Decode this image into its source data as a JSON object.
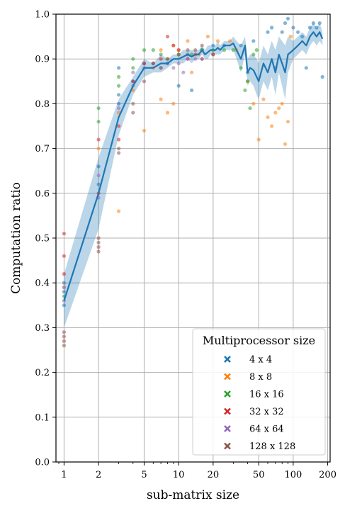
{
  "chart_data": {
    "type": "scatter",
    "title": "",
    "xlabel": "sub-matrix size",
    "ylabel": "Computation ratio",
    "x_scale": "log",
    "xlim": [
      0.85,
      210
    ],
    "ylim": [
      0.0,
      1.0
    ],
    "x_ticks": [
      1,
      2,
      5,
      10,
      20,
      50,
      100,
      200
    ],
    "x_tick_labels": [
      "1",
      "2",
      "5",
      "10",
      "20",
      "50",
      "100",
      "200"
    ],
    "y_ticks": [
      0.0,
      0.1,
      0.2,
      0.3,
      0.4,
      0.5,
      0.6,
      0.7,
      0.8,
      0.9,
      1.0
    ],
    "y_tick_labels": [
      "0.0",
      "0.1",
      "0.2",
      "0.3",
      "0.4",
      "0.5",
      "0.6",
      "0.7",
      "0.8",
      "0.9",
      "1.0"
    ],
    "grid": true,
    "legend": {
      "title": "Multiprocessor size",
      "placement": "lower-right",
      "entries": [
        "4 x 4",
        "8 x 8",
        "16 x 16",
        "32 x 32",
        "64 x 64",
        "128 x 128"
      ]
    },
    "colors": {
      "4 x 4": "#1f77b4",
      "8 x 8": "#ff7f0e",
      "16 x 16": "#2ca02c",
      "32 x 32": "#d62728",
      "64 x 64": "#9467bd",
      "128 x 128": "#8c564b",
      "mean_line": "#1f77b4",
      "band": "#1f77b4"
    },
    "mean_line": {
      "x": [
        1,
        2,
        3,
        4,
        5,
        6,
        7,
        8,
        9,
        10,
        11,
        12,
        13,
        14,
        15,
        16,
        17,
        18,
        19,
        20,
        21,
        22,
        23,
        25,
        28,
        30,
        32,
        35,
        38,
        40,
        42,
        45,
        48,
        50,
        55,
        60,
        65,
        70,
        75,
        80,
        85,
        90,
        100,
        110,
        120,
        130,
        140,
        150,
        160,
        170,
        180
      ],
      "y": [
        0.36,
        0.6,
        0.77,
        0.84,
        0.88,
        0.88,
        0.89,
        0.89,
        0.9,
        0.9,
        0.905,
        0.91,
        0.905,
        0.91,
        0.91,
        0.92,
        0.91,
        0.915,
        0.92,
        0.92,
        0.92,
        0.925,
        0.92,
        0.93,
        0.93,
        0.935,
        0.92,
        0.9,
        0.93,
        0.87,
        0.88,
        0.875,
        0.86,
        0.85,
        0.89,
        0.87,
        0.9,
        0.87,
        0.91,
        0.89,
        0.87,
        0.91,
        0.92,
        0.93,
        0.94,
        0.93,
        0.95,
        0.96,
        0.95,
        0.96,
        0.945
      ]
    },
    "band": {
      "lower": [
        0.3,
        0.52,
        0.73,
        0.82,
        0.86,
        0.87,
        0.87,
        0.88,
        0.89,
        0.89,
        0.89,
        0.9,
        0.89,
        0.9,
        0.9,
        0.91,
        0.9,
        0.9,
        0.91,
        0.91,
        0.91,
        0.91,
        0.91,
        0.92,
        0.92,
        0.92,
        0.9,
        0.87,
        0.91,
        0.84,
        0.85,
        0.84,
        0.82,
        0.81,
        0.85,
        0.83,
        0.86,
        0.82,
        0.87,
        0.84,
        0.81,
        0.87,
        0.9,
        0.91,
        0.92,
        0.91,
        0.93,
        0.94,
        0.93,
        0.94,
        0.93
      ],
      "upper": [
        0.42,
        0.68,
        0.81,
        0.86,
        0.9,
        0.89,
        0.91,
        0.9,
        0.91,
        0.91,
        0.92,
        0.92,
        0.92,
        0.92,
        0.92,
        0.93,
        0.92,
        0.93,
        0.93,
        0.93,
        0.93,
        0.94,
        0.93,
        0.94,
        0.94,
        0.95,
        0.94,
        0.93,
        0.95,
        0.9,
        0.91,
        0.91,
        0.9,
        0.89,
        0.93,
        0.91,
        0.94,
        0.92,
        0.95,
        0.94,
        0.93,
        0.95,
        0.94,
        0.95,
        0.96,
        0.95,
        0.97,
        0.98,
        0.97,
        0.98,
        0.96
      ]
    },
    "series": [
      {
        "name": "4 x 4",
        "points": [
          [
            1,
            0.35
          ],
          [
            1,
            0.38
          ],
          [
            1,
            0.4
          ],
          [
            2,
            0.62
          ],
          [
            2,
            0.66
          ],
          [
            3,
            0.8
          ],
          [
            3,
            0.82
          ],
          [
            3,
            0.88
          ],
          [
            4,
            0.85
          ],
          [
            5,
            0.89
          ],
          [
            8,
            0.89
          ],
          [
            10,
            0.84
          ],
          [
            12,
            0.91
          ],
          [
            13,
            0.83
          ],
          [
            16,
            0.92
          ],
          [
            20,
            0.93
          ],
          [
            25,
            0.93
          ],
          [
            35,
            0.93
          ],
          [
            40,
            0.87
          ],
          [
            45,
            0.94
          ],
          [
            60,
            0.96
          ],
          [
            65,
            0.97
          ],
          [
            70,
            0.88
          ],
          [
            80,
            0.96
          ],
          [
            85,
            0.98
          ],
          [
            90,
            0.99
          ],
          [
            100,
            0.97
          ],
          [
            110,
            0.96
          ],
          [
            120,
            0.95
          ],
          [
            130,
            0.88
          ],
          [
            140,
            0.97
          ],
          [
            150,
            0.98
          ],
          [
            160,
            0.97
          ],
          [
            170,
            0.98
          ],
          [
            180,
            0.86
          ]
        ]
      },
      {
        "name": "8 x 8",
        "points": [
          [
            1,
            0.39
          ],
          [
            2,
            0.7
          ],
          [
            3,
            0.56
          ],
          [
            3,
            0.78
          ],
          [
            4,
            0.83
          ],
          [
            5,
            0.74
          ],
          [
            6,
            0.88
          ],
          [
            7,
            0.81
          ],
          [
            7,
            0.92
          ],
          [
            8,
            0.78
          ],
          [
            9,
            0.8
          ],
          [
            9,
            0.93
          ],
          [
            10,
            0.92
          ],
          [
            12,
            0.94
          ],
          [
            13,
            0.87
          ],
          [
            15,
            0.91
          ],
          [
            18,
            0.95
          ],
          [
            22,
            0.94
          ],
          [
            28,
            0.94
          ],
          [
            32,
            0.92
          ],
          [
            40,
            0.85
          ],
          [
            45,
            0.8
          ],
          [
            50,
            0.72
          ],
          [
            55,
            0.81
          ],
          [
            60,
            0.77
          ],
          [
            65,
            0.75
          ],
          [
            70,
            0.78
          ],
          [
            75,
            0.79
          ],
          [
            80,
            0.8
          ],
          [
            85,
            0.71
          ],
          [
            90,
            0.76
          ],
          [
            95,
            0.95
          ]
        ]
      },
      {
        "name": "16 x 16",
        "points": [
          [
            1,
            0.37
          ],
          [
            2,
            0.79
          ],
          [
            2,
            0.76
          ],
          [
            3,
            0.86
          ],
          [
            3,
            0.84
          ],
          [
            4,
            0.9
          ],
          [
            4,
            0.88
          ],
          [
            5,
            0.92
          ],
          [
            6,
            0.92
          ],
          [
            7,
            0.91
          ],
          [
            8,
            0.9
          ],
          [
            10,
            0.91
          ],
          [
            13,
            0.91
          ],
          [
            16,
            0.92
          ],
          [
            20,
            0.92
          ],
          [
            25,
            0.92
          ],
          [
            30,
            0.92
          ],
          [
            35,
            0.88
          ],
          [
            38,
            0.83
          ],
          [
            40,
            0.85
          ],
          [
            42,
            0.79
          ],
          [
            45,
            0.91
          ],
          [
            48,
            0.92
          ]
        ]
      },
      {
        "name": "32 x 32",
        "points": [
          [
            1,
            0.51
          ],
          [
            1,
            0.46
          ],
          [
            1,
            0.42
          ],
          [
            2,
            0.72
          ],
          [
            2,
            0.6
          ],
          [
            3,
            0.75
          ],
          [
            3,
            0.72
          ],
          [
            4,
            0.85
          ],
          [
            5,
            0.89
          ],
          [
            6,
            0.89
          ],
          [
            7,
            0.9
          ],
          [
            8,
            0.95
          ],
          [
            9,
            0.93
          ],
          [
            10,
            0.92
          ],
          [
            12,
            0.9
          ],
          [
            14,
            0.91
          ],
          [
            16,
            0.9
          ],
          [
            20,
            0.91
          ]
        ]
      },
      {
        "name": "64 x 64",
        "points": [
          [
            1,
            0.39
          ],
          [
            1,
            0.36
          ],
          [
            2,
            0.64
          ],
          [
            2,
            0.59
          ],
          [
            3,
            0.79
          ],
          [
            4,
            0.87
          ],
          [
            4,
            0.84
          ],
          [
            5,
            0.88
          ],
          [
            6,
            0.89
          ],
          [
            7,
            0.88
          ],
          [
            8,
            0.89
          ],
          [
            9,
            0.88
          ],
          [
            10,
            0.89
          ],
          [
            11,
            0.87
          ],
          [
            12,
            0.9
          ],
          [
            14,
            0.9
          ],
          [
            16,
            0.9
          ]
        ]
      },
      {
        "name": "128 x 128",
        "points": [
          [
            1,
            0.29
          ],
          [
            1,
            0.27
          ],
          [
            1,
            0.26
          ],
          [
            1,
            0.28
          ],
          [
            2,
            0.49
          ],
          [
            2,
            0.48
          ],
          [
            2,
            0.47
          ],
          [
            2,
            0.5
          ],
          [
            3,
            0.69
          ],
          [
            3,
            0.7
          ],
          [
            4,
            0.78
          ],
          [
            4,
            0.8
          ],
          [
            5,
            0.85
          ],
          [
            6,
            0.89
          ],
          [
            7,
            0.88
          ],
          [
            8,
            0.9
          ],
          [
            10,
            0.91
          ],
          [
            12,
            0.92
          ],
          [
            14,
            0.92
          ],
          [
            16,
            0.93
          ],
          [
            20,
            0.91
          ]
        ]
      }
    ]
  }
}
